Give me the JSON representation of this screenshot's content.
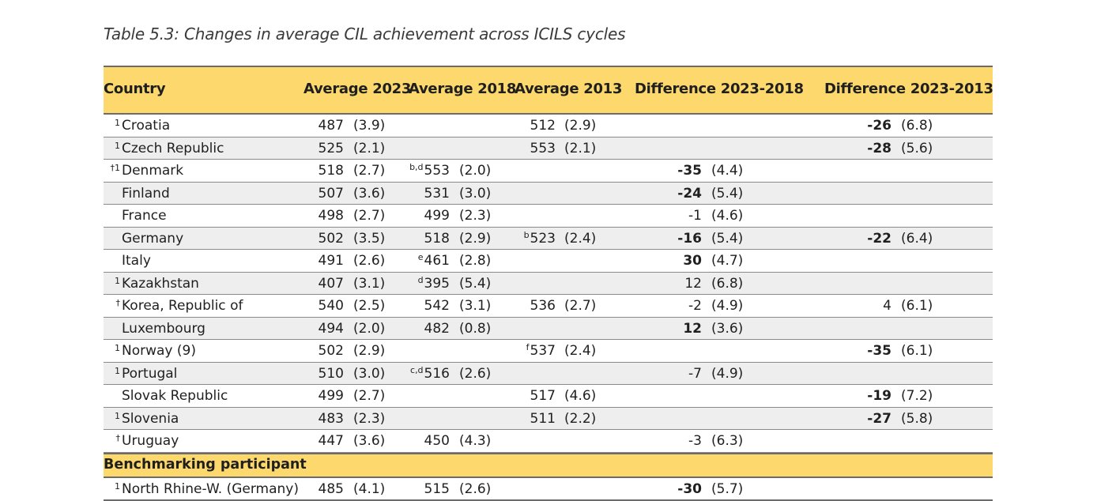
{
  "caption": "Table 5.3: Changes in average CIL achievement across ICILS cycles",
  "headers": {
    "country": "Country",
    "avg2023": "Average 2023",
    "avg2018": "Average 2018",
    "avg2013": "Average 2013",
    "diff2018": "Difference 2023-2018",
    "diff2013": "Difference 2023-2013"
  },
  "rows": [
    {
      "note": "1",
      "country": "Croatia",
      "a23": "487",
      "s23": "(3.9)",
      "n18": "",
      "a18": "",
      "s18": "",
      "n13": "",
      "a13": "512",
      "s13": "(2.9)",
      "d18": "",
      "ds18": "",
      "d18b": false,
      "d13": "-26",
      "ds13": "(6.8)",
      "d13b": true
    },
    {
      "note": "1",
      "country": "Czech Republic",
      "a23": "525",
      "s23": "(2.1)",
      "n18": "",
      "a18": "",
      "s18": "",
      "n13": "",
      "a13": "553",
      "s13": "(2.1)",
      "d18": "",
      "ds18": "",
      "d18b": false,
      "d13": "-28",
      "ds13": "(5.6)",
      "d13b": true
    },
    {
      "note": "†1",
      "country": "Denmark",
      "a23": "518",
      "s23": "(2.7)",
      "n18": "b,d",
      "a18": "553",
      "s18": "(2.0)",
      "n13": "",
      "a13": "",
      "s13": "",
      "d18": "-35",
      "ds18": "(4.4)",
      "d18b": true,
      "d13": "",
      "ds13": "",
      "d13b": false
    },
    {
      "note": "",
      "country": "Finland",
      "a23": "507",
      "s23": "(3.6)",
      "n18": "",
      "a18": "531",
      "s18": "(3.0)",
      "n13": "",
      "a13": "",
      "s13": "",
      "d18": "-24",
      "ds18": "(5.4)",
      "d18b": true,
      "d13": "",
      "ds13": "",
      "d13b": false
    },
    {
      "note": "",
      "country": "France",
      "a23": "498",
      "s23": "(2.7)",
      "n18": "",
      "a18": "499",
      "s18": "(2.3)",
      "n13": "",
      "a13": "",
      "s13": "",
      "d18": "-1",
      "ds18": "(4.6)",
      "d18b": false,
      "d13": "",
      "ds13": "",
      "d13b": false
    },
    {
      "note": "",
      "country": "Germany",
      "a23": "502",
      "s23": "(3.5)",
      "n18": "",
      "a18": "518",
      "s18": "(2.9)",
      "n13": "b",
      "a13": "523",
      "s13": "(2.4)",
      "d18": "-16",
      "ds18": "(5.4)",
      "d18b": true,
      "d13": "-22",
      "ds13": "(6.4)",
      "d13b": true
    },
    {
      "note": "",
      "country": "Italy",
      "a23": "491",
      "s23": "(2.6)",
      "n18": "e",
      "a18": "461",
      "s18": "(2.8)",
      "n13": "",
      "a13": "",
      "s13": "",
      "d18": "30",
      "ds18": "(4.7)",
      "d18b": true,
      "d13": "",
      "ds13": "",
      "d13b": false
    },
    {
      "note": "1",
      "country": "Kazakhstan",
      "a23": "407",
      "s23": "(3.1)",
      "n18": "d",
      "a18": "395",
      "s18": "(5.4)",
      "n13": "",
      "a13": "",
      "s13": "",
      "d18": "12",
      "ds18": "(6.8)",
      "d18b": false,
      "d13": "",
      "ds13": "",
      "d13b": false
    },
    {
      "note": "†",
      "country": "Korea, Republic of",
      "a23": "540",
      "s23": "(2.5)",
      "n18": "",
      "a18": "542",
      "s18": "(3.1)",
      "n13": "",
      "a13": "536",
      "s13": "(2.7)",
      "d18": "-2",
      "ds18": "(4.9)",
      "d18b": false,
      "d13": "4",
      "ds13": "(6.1)",
      "d13b": false
    },
    {
      "note": "",
      "country": "Luxembourg",
      "a23": "494",
      "s23": "(2.0)",
      "n18": "",
      "a18": "482",
      "s18": "(0.8)",
      "n13": "",
      "a13": "",
      "s13": "",
      "d18": "12",
      "ds18": "(3.6)",
      "d18b": true,
      "d13": "",
      "ds13": "",
      "d13b": false
    },
    {
      "note": "1",
      "country": "Norway (9)",
      "a23": "502",
      "s23": "(2.9)",
      "n18": "",
      "a18": "",
      "s18": "",
      "n13": "f",
      "a13": "537",
      "s13": "(2.4)",
      "d18": "",
      "ds18": "",
      "d18b": false,
      "d13": "-35",
      "ds13": "(6.1)",
      "d13b": true
    },
    {
      "note": "1",
      "country": "Portugal",
      "a23": "510",
      "s23": "(3.0)",
      "n18": "c,d",
      "a18": "516",
      "s18": "(2.6)",
      "n13": "",
      "a13": "",
      "s13": "",
      "d18": "-7",
      "ds18": "(4.9)",
      "d18b": false,
      "d13": "",
      "ds13": "",
      "d13b": false
    },
    {
      "note": "",
      "country": "Slovak Republic",
      "a23": "499",
      "s23": "(2.7)",
      "n18": "",
      "a18": "",
      "s18": "",
      "n13": "",
      "a13": "517",
      "s13": "(4.6)",
      "d18": "",
      "ds18": "",
      "d18b": false,
      "d13": "-19",
      "ds13": "(7.2)",
      "d13b": true
    },
    {
      "note": "1",
      "country": "Slovenia",
      "a23": "483",
      "s23": "(2.3)",
      "n18": "",
      "a18": "",
      "s18": "",
      "n13": "",
      "a13": "511",
      "s13": "(2.2)",
      "d18": "",
      "ds18": "",
      "d18b": false,
      "d13": "-27",
      "ds13": "(5.8)",
      "d13b": true
    },
    {
      "note": "†",
      "country": "Uruguay",
      "a23": "447",
      "s23": "(3.6)",
      "n18": "",
      "a18": "450",
      "s18": "(4.3)",
      "n13": "",
      "a13": "",
      "s13": "",
      "d18": "-3",
      "ds18": "(6.3)",
      "d18b": false,
      "d13": "",
      "ds13": "",
      "d13b": false
    }
  ],
  "benchmark_label": "Benchmarking participant",
  "benchmark_rows": [
    {
      "note": "1",
      "country": "North Rhine-W. (Germany)",
      "a23": "485",
      "s23": "(4.1)",
      "n18": "",
      "a18": "515",
      "s18": "(2.6)",
      "n13": "",
      "a13": "",
      "s13": "",
      "d18": "-30",
      "ds18": "(5.7)",
      "d18b": true,
      "d13": "",
      "ds13": "",
      "d13b": false
    }
  ]
}
